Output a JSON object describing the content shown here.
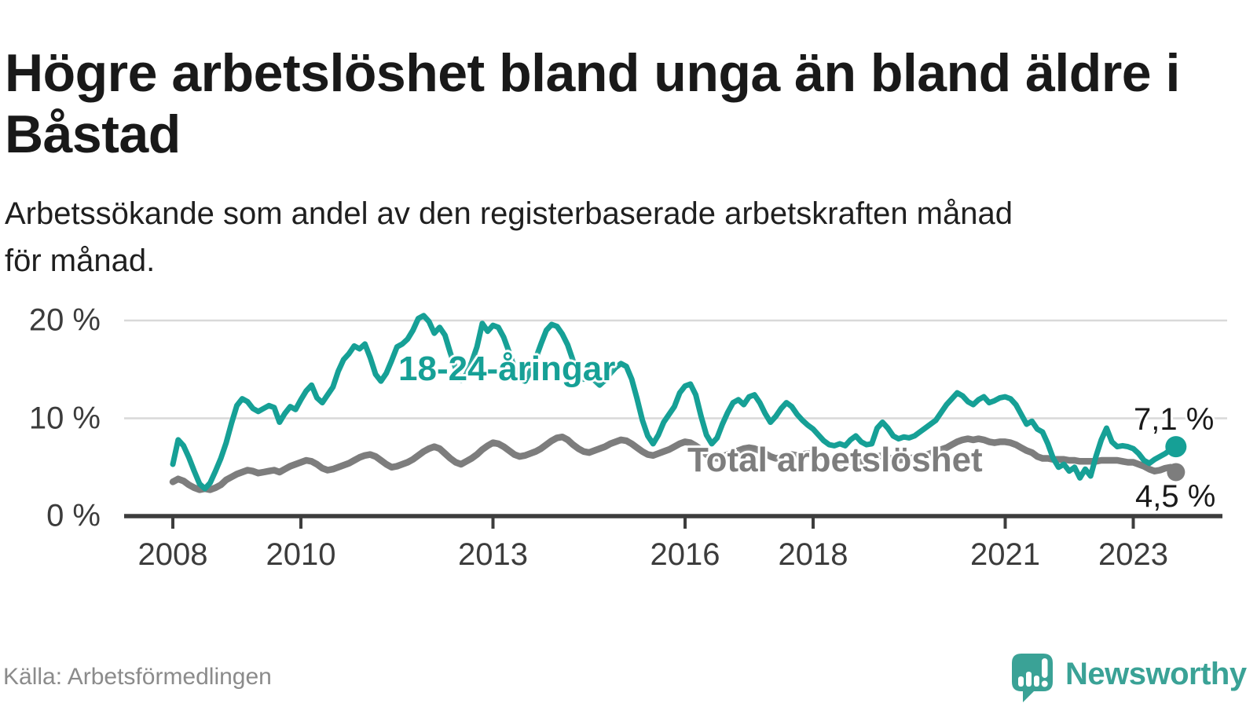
{
  "header": {
    "title": "Högre arbetslöshet bland unga än bland äldre i Båstad",
    "subtitle": "Arbetssökande som andel av den registerbaserade arbetskraften månad\nför månad."
  },
  "footer": {
    "source": "Källa: Arbetsförmedlingen",
    "brand": "Newsworthy"
  },
  "colors": {
    "youth": "#16a096",
    "total": "#7d7d7d",
    "grid": "#d9d9d9",
    "axis_line": "#3d3d3d",
    "axis_text": "#3c3c3c",
    "value_label": "#1a1a1a",
    "brand_teal": "#3aa296"
  },
  "chart_data": {
    "type": "line",
    "unit": "%",
    "frequency": "monthly",
    "start": "2008-01",
    "end": "2023-09",
    "ylim": [
      0,
      21.5
    ],
    "grid": "horizontal",
    "y_ticks": [
      {
        "value": 0,
        "label": "0 %"
      },
      {
        "value": 10,
        "label": "10 %"
      },
      {
        "value": 20,
        "label": "20 %"
      }
    ],
    "x_ticks": [
      {
        "value": 2008,
        "label": "2008"
      },
      {
        "value": 2010,
        "label": "2010"
      },
      {
        "value": 2013,
        "label": "2013"
      },
      {
        "value": 2016,
        "label": "2016"
      },
      {
        "value": 2018,
        "label": "2018"
      },
      {
        "value": 2021,
        "label": "2021"
      },
      {
        "value": 2023,
        "label": "2023"
      }
    ],
    "series": [
      {
        "name": "18-24-åringar",
        "color": "#16a096",
        "end_label": "7,1 %",
        "values": [
          5.3,
          7.8,
          7.2,
          6.0,
          4.6,
          3.3,
          2.8,
          3.4,
          4.6,
          5.9,
          7.5,
          9.5,
          11.3,
          12.0,
          11.7,
          11.0,
          10.7,
          11.0,
          11.3,
          11.1,
          9.6,
          10.5,
          11.2,
          10.9,
          11.9,
          12.8,
          13.4,
          12.1,
          11.6,
          12.4,
          13.2,
          14.8,
          16.0,
          16.6,
          17.4,
          17.1,
          17.6,
          16.2,
          14.5,
          13.8,
          14.6,
          15.9,
          17.3,
          17.6,
          18.1,
          19.0,
          20.2,
          20.5,
          19.9,
          18.7,
          19.3,
          18.5,
          16.7,
          15.1,
          13.9,
          14.5,
          15.7,
          17.3,
          19.7,
          18.9,
          19.5,
          19.3,
          18.3,
          16.8,
          15.2,
          14.1,
          13.8,
          14.8,
          16.1,
          17.6,
          19.0,
          19.6,
          19.4,
          18.6,
          17.5,
          15.9,
          14.4,
          14.0,
          14.8,
          13.9,
          13.4,
          13.9,
          14.6,
          15.2,
          15.6,
          15.3,
          14.0,
          12.0,
          9.8,
          8.2,
          7.4,
          8.3,
          9.6,
          10.4,
          11.2,
          12.6,
          13.3,
          13.5,
          12.4,
          10.2,
          8.3,
          7.4,
          8.0,
          9.4,
          10.6,
          11.6,
          11.9,
          11.4,
          12.2,
          12.4,
          11.6,
          10.5,
          9.6,
          10.2,
          11.0,
          11.6,
          11.2,
          10.4,
          9.8,
          9.3,
          8.9,
          8.3,
          7.7,
          7.3,
          7.2,
          7.4,
          7.2,
          7.8,
          8.2,
          7.6,
          7.3,
          7.4,
          9.0,
          9.6,
          9.0,
          8.2,
          7.9,
          8.1,
          8.0,
          8.2,
          8.6,
          9.0,
          9.4,
          9.8,
          10.6,
          11.4,
          12.0,
          12.6,
          12.3,
          11.7,
          11.4,
          11.9,
          12.2,
          11.6,
          11.8,
          12.1,
          12.2,
          12.0,
          11.4,
          10.4,
          9.4,
          9.7,
          8.9,
          8.6,
          7.4,
          5.9,
          5.0,
          5.3,
          4.6,
          5.0,
          3.9,
          4.8,
          4.1,
          6.1,
          7.8,
          9.0,
          7.6,
          7.1,
          7.2,
          7.1,
          6.9,
          6.4,
          5.7,
          5.4,
          5.8,
          6.1,
          6.4,
          6.8,
          7.1
        ]
      },
      {
        "name": "Total arbetslöshet",
        "color": "#7d7d7d",
        "end_label": "4,5 %",
        "values": [
          3.5,
          3.8,
          3.6,
          3.2,
          2.9,
          2.7,
          2.8,
          2.7,
          2.9,
          3.2,
          3.7,
          4.0,
          4.3,
          4.5,
          4.7,
          4.6,
          4.4,
          4.5,
          4.6,
          4.7,
          4.5,
          4.8,
          5.1,
          5.3,
          5.5,
          5.7,
          5.6,
          5.3,
          4.9,
          4.7,
          4.8,
          5.0,
          5.2,
          5.4,
          5.7,
          6.0,
          6.2,
          6.3,
          6.1,
          5.7,
          5.3,
          5.0,
          5.1,
          5.3,
          5.5,
          5.8,
          6.2,
          6.6,
          6.9,
          7.1,
          6.9,
          6.4,
          5.9,
          5.5,
          5.3,
          5.6,
          5.9,
          6.3,
          6.8,
          7.2,
          7.5,
          7.4,
          7.1,
          6.7,
          6.3,
          6.1,
          6.2,
          6.4,
          6.6,
          6.9,
          7.3,
          7.7,
          8.0,
          8.1,
          7.8,
          7.3,
          6.9,
          6.6,
          6.5,
          6.7,
          6.9,
          7.1,
          7.4,
          7.6,
          7.8,
          7.7,
          7.4,
          7.0,
          6.6,
          6.3,
          6.2,
          6.4,
          6.6,
          6.8,
          7.1,
          7.4,
          7.6,
          7.5,
          7.2,
          6.8,
          6.3,
          6.0,
          5.9,
          6.1,
          6.3,
          6.5,
          6.7,
          6.9,
          7.0,
          6.9,
          6.7,
          6.4,
          6.1,
          5.9,
          6.0,
          6.2,
          6.3,
          6.2,
          6.3,
          6.4,
          6.4,
          6.3,
          6.1,
          5.8,
          5.6,
          5.5,
          5.4,
          5.6,
          5.7,
          5.6,
          5.7,
          5.9,
          6.1,
          6.2,
          6.0,
          5.8,
          5.7,
          5.8,
          5.9,
          6.0,
          6.1,
          6.2,
          6.4,
          6.6,
          6.8,
          7.0,
          7.3,
          7.6,
          7.8,
          7.9,
          7.8,
          7.9,
          7.8,
          7.6,
          7.5,
          7.6,
          7.6,
          7.5,
          7.3,
          7.0,
          6.7,
          6.5,
          6.1,
          5.9,
          5.9,
          5.8,
          5.8,
          5.8,
          5.7,
          5.7,
          5.6,
          5.6,
          5.6,
          5.6,
          5.7,
          5.7,
          5.7,
          5.7,
          5.6,
          5.5,
          5.5,
          5.3,
          5.1,
          4.8,
          4.6,
          4.7,
          4.9,
          5.0,
          4.5
        ]
      }
    ]
  }
}
